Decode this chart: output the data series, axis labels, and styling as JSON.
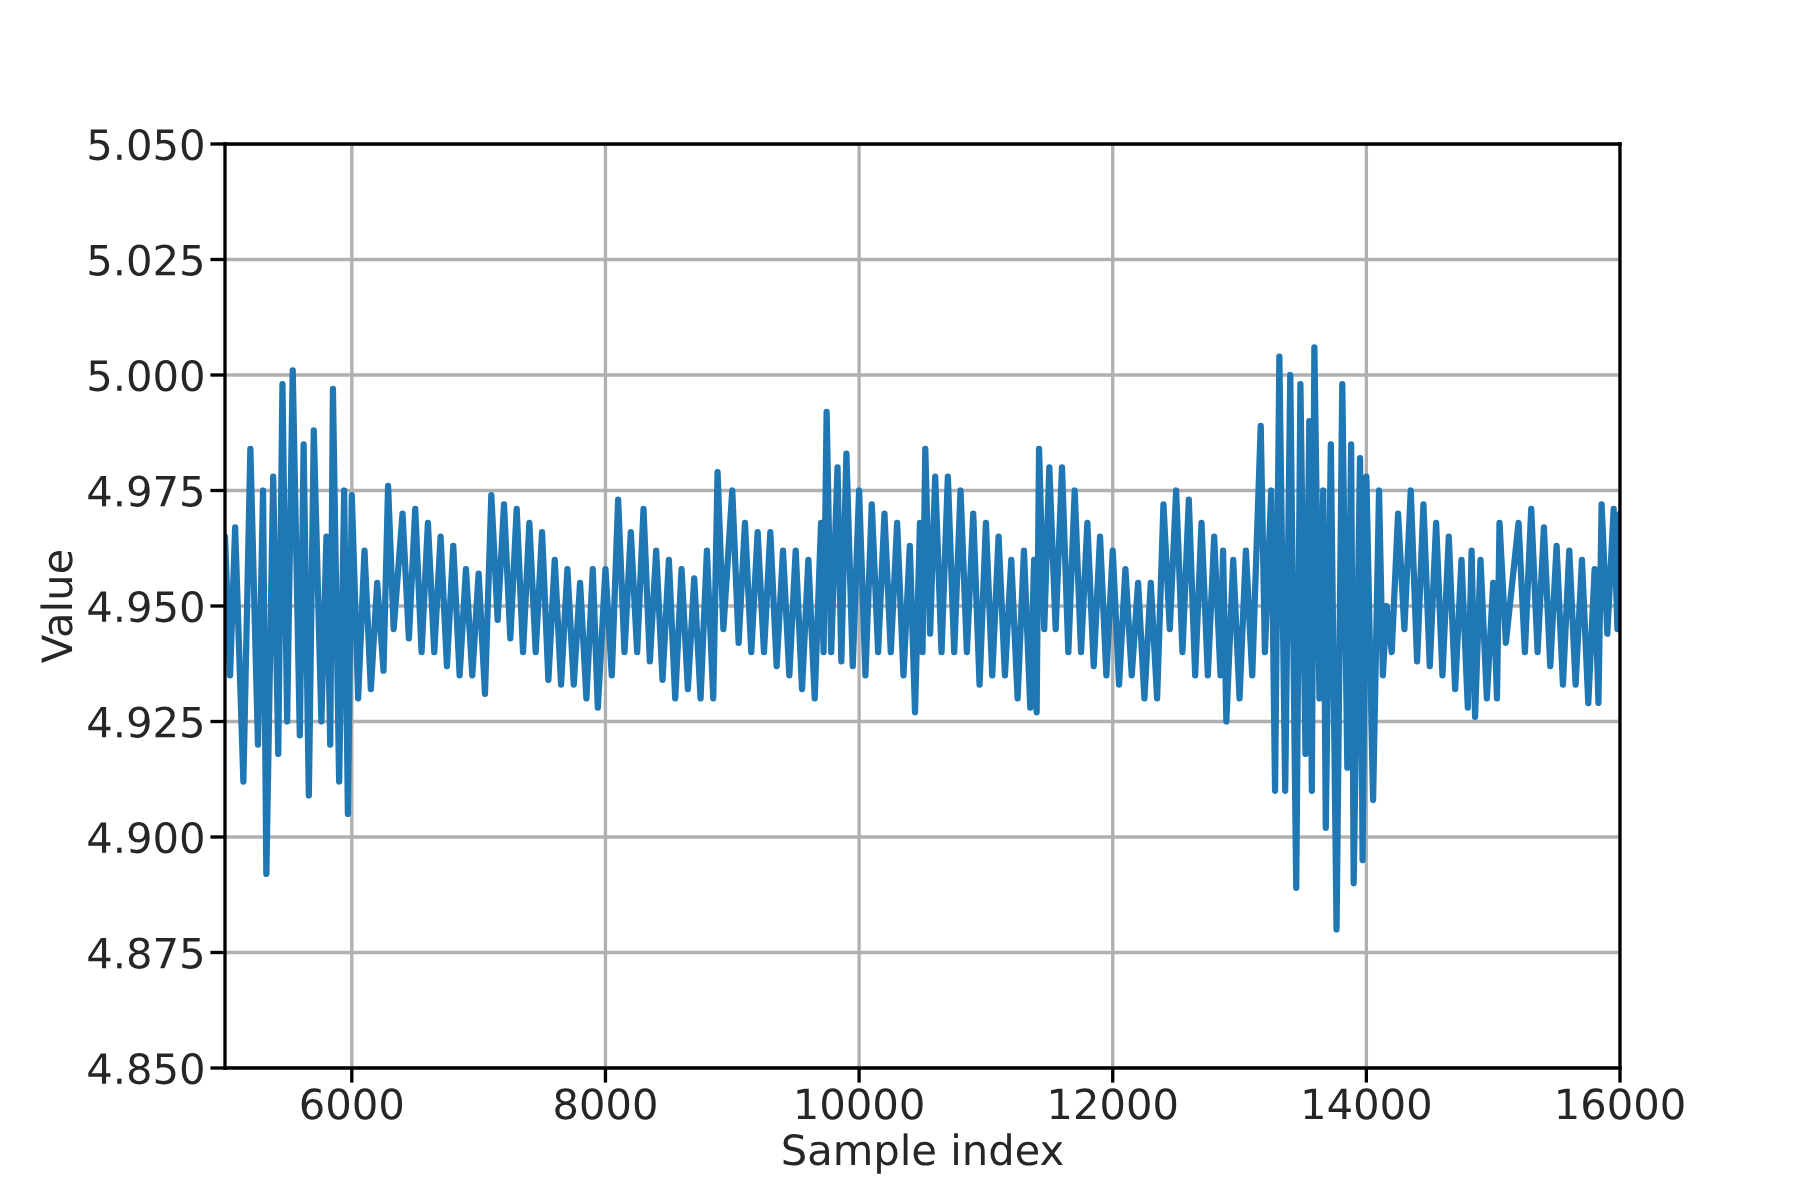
{
  "chart_data": {
    "type": "line",
    "xlabel": "Sample index",
    "ylabel": "Value",
    "x": [
      5000,
      5040,
      5080,
      5145,
      5200,
      5260,
      5300,
      5326,
      5380,
      5420,
      5453,
      5490,
      5534,
      5590,
      5620,
      5661,
      5700,
      5760,
      5800,
      5830,
      5851,
      5900,
      5940,
      5969,
      6000,
      6050,
      6100,
      6150,
      6200,
      6250,
      6286,
      6330,
      6400,
      6450,
      6500,
      6550,
      6600,
      6650,
      6700,
      6750,
      6800,
      6850,
      6900,
      6950,
      7000,
      7050,
      7100,
      7150,
      7200,
      7250,
      7300,
      7350,
      7400,
      7450,
      7500,
      7550,
      7600,
      7650,
      7700,
      7750,
      7800,
      7850,
      7900,
      7940,
      8000,
      8050,
      8100,
      8150,
      8200,
      8250,
      8300,
      8350,
      8400,
      8450,
      8500,
      8550,
      8600,
      8650,
      8700,
      8750,
      8800,
      8850,
      8884,
      8930,
      9000,
      9050,
      9100,
      9150,
      9200,
      9250,
      9300,
      9350,
      9400,
      9450,
      9500,
      9550,
      9600,
      9650,
      9700,
      9720,
      9744,
      9780,
      9830,
      9860,
      9900,
      9950,
      10000,
      10050,
      10100,
      10150,
      10200,
      10250,
      10300,
      10350,
      10400,
      10441,
      10480,
      10500,
      10522,
      10560,
      10600,
      10650,
      10700,
      10750,
      10800,
      10850,
      10900,
      10950,
      11000,
      11050,
      11100,
      11150,
      11200,
      11250,
      11300,
      11350,
      11380,
      11400,
      11419,
      11460,
      11500,
      11550,
      11600,
      11650,
      11700,
      11750,
      11800,
      11850,
      11900,
      11950,
      12000,
      12050,
      12100,
      12150,
      12200,
      12250,
      12300,
      12350,
      12400,
      12450,
      12500,
      12550,
      12600,
      12650,
      12700,
      12750,
      12800,
      12850,
      12870,
      12896,
      12950,
      13000,
      13050,
      13100,
      13167,
      13200,
      13250,
      13280,
      13314,
      13360,
      13400,
      13447,
      13480,
      13520,
      13550,
      13570,
      13590,
      13630,
      13660,
      13680,
      13720,
      13765,
      13810,
      13850,
      13880,
      13900,
      13950,
      13970,
      14000,
      14053,
      14100,
      14130,
      14160,
      14200,
      14250,
      14300,
      14350,
      14400,
      14450,
      14500,
      14550,
      14600,
      14650,
      14700,
      14750,
      14800,
      14830,
      14857,
      14900,
      14950,
      15000,
      15030,
      15050,
      15100,
      15200,
      15250,
      15300,
      15350,
      15400,
      15450,
      15500,
      15550,
      15600,
      15650,
      15700,
      15750,
      15800,
      15830,
      15855,
      15900,
      15950,
      15980,
      16000
    ],
    "series": [
      {
        "color": "#1f77b4",
        "values": [
          4.965,
          4.935,
          4.967,
          4.912,
          4.984,
          4.92,
          4.975,
          4.892,
          4.978,
          4.918,
          4.998,
          4.925,
          5.001,
          4.922,
          4.985,
          4.909,
          4.988,
          4.925,
          4.965,
          4.92,
          4.997,
          4.912,
          4.975,
          4.905,
          4.974,
          4.93,
          4.962,
          4.932,
          4.955,
          4.936,
          4.976,
          4.945,
          4.97,
          4.943,
          4.971,
          4.94,
          4.968,
          4.94,
          4.965,
          4.937,
          4.963,
          4.935,
          4.958,
          4.935,
          4.957,
          4.931,
          4.974,
          4.947,
          4.972,
          4.943,
          4.971,
          4.94,
          4.968,
          4.94,
          4.966,
          4.934,
          4.96,
          4.933,
          4.958,
          4.933,
          4.955,
          4.93,
          4.958,
          4.928,
          4.958,
          4.935,
          4.973,
          4.94,
          4.966,
          4.94,
          4.971,
          4.938,
          4.962,
          4.934,
          4.96,
          4.93,
          4.958,
          4.932,
          4.956,
          4.93,
          4.962,
          4.93,
          4.979,
          4.945,
          4.975,
          4.942,
          4.968,
          4.94,
          4.966,
          4.94,
          4.966,
          4.937,
          4.962,
          4.935,
          4.962,
          4.932,
          4.96,
          4.93,
          4.968,
          4.94,
          4.992,
          4.94,
          4.98,
          4.938,
          4.983,
          4.937,
          4.975,
          4.935,
          4.972,
          4.94,
          4.97,
          4.94,
          4.968,
          4.935,
          4.963,
          4.927,
          4.968,
          4.94,
          4.984,
          4.944,
          4.978,
          4.94,
          4.978,
          4.94,
          4.975,
          4.94,
          4.97,
          4.933,
          4.968,
          4.935,
          4.965,
          4.935,
          4.96,
          4.93,
          4.962,
          4.928,
          4.96,
          4.927,
          4.984,
          4.945,
          4.98,
          4.945,
          4.98,
          4.94,
          4.975,
          4.94,
          4.968,
          4.937,
          4.965,
          4.935,
          4.962,
          4.933,
          4.958,
          4.935,
          4.955,
          4.93,
          4.955,
          4.93,
          4.972,
          4.945,
          4.975,
          4.94,
          4.973,
          4.935,
          4.968,
          4.935,
          4.965,
          4.935,
          4.962,
          4.925,
          4.96,
          4.93,
          4.962,
          4.935,
          4.989,
          4.94,
          4.975,
          4.91,
          5.004,
          4.91,
          5.0,
          4.889,
          4.998,
          4.918,
          4.99,
          4.91,
          5.006,
          4.93,
          4.975,
          4.902,
          4.985,
          4.88,
          4.998,
          4.915,
          4.985,
          4.89,
          4.982,
          4.895,
          4.978,
          4.908,
          4.975,
          4.935,
          4.95,
          4.94,
          4.97,
          4.945,
          4.975,
          4.938,
          4.972,
          4.937,
          4.968,
          4.935,
          4.965,
          4.932,
          4.96,
          4.928,
          4.962,
          4.926,
          4.96,
          4.93,
          4.955,
          4.93,
          4.968,
          4.942,
          4.968,
          4.94,
          4.971,
          4.94,
          4.967,
          4.937,
          4.963,
          4.933,
          4.962,
          4.933,
          4.96,
          4.929,
          4.958,
          4.929,
          4.972,
          4.944,
          4.971,
          4.945,
          4.97
        ]
      }
    ],
    "xlim": [
      5000,
      16000
    ],
    "xticks": [
      6000,
      8000,
      10000,
      12000,
      14000,
      16000
    ],
    "ylim": [
      4.85,
      5.05
    ],
    "yticks": [
      {
        "value": 4.85,
        "label": "4.850"
      },
      {
        "value": 4.875,
        "label": "4.875"
      },
      {
        "value": 4.9,
        "label": "4.900"
      },
      {
        "value": 4.925,
        "label": "4.925"
      },
      {
        "value": 4.95,
        "label": "4.950"
      },
      {
        "value": 4.975,
        "label": "4.975"
      },
      {
        "value": 5.0,
        "label": "5.000"
      },
      {
        "value": 5.025,
        "label": "5.025"
      },
      {
        "value": 5.05,
        "label": "5.050"
      }
    ],
    "grid": true
  }
}
